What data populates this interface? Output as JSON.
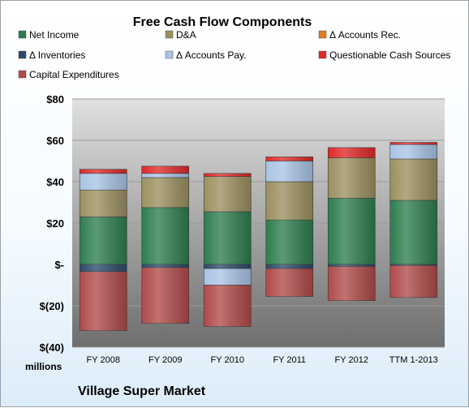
{
  "chart_data": {
    "type": "bar",
    "stacked": true,
    "title": "Free Cash Flow Components",
    "unit_label": "millions",
    "caption": "Village Super Market",
    "categories": [
      "FY 2008",
      "FY 2009",
      "FY 2010",
      "FY 2011",
      "FY 2012",
      "TTM 1-2013"
    ],
    "y_ticks": [
      "$80",
      "$60",
      "$40",
      "$20",
      "$-",
      "$(20)",
      "$(40)"
    ],
    "ylim": [
      -40,
      80
    ],
    "grid": true,
    "legend_position": "top",
    "series": [
      {
        "name": "Net Income",
        "color": "#2e7d4f",
        "values": [
          23,
          27.5,
          25.5,
          21.5,
          32,
          31
        ]
      },
      {
        "name": "D&A",
        "color": "#9b9060",
        "values": [
          13,
          14.5,
          17,
          18.5,
          19.5,
          20
        ]
      },
      {
        "name": "Δ Accounts Rec.",
        "color": "#e07b20",
        "values": [
          0,
          0,
          0,
          0,
          0,
          0
        ]
      },
      {
        "name": "Δ Inventories",
        "color": "#2b4a6b",
        "values": [
          -3.5,
          -1.5,
          -2,
          -2,
          -1,
          -0.5
        ]
      },
      {
        "name": "Δ Accounts Pay.",
        "color": "#a9c4e4",
        "values": [
          8,
          2,
          -8,
          10,
          0,
          7
        ]
      },
      {
        "name": "Questionable Cash Sources",
        "color": "#e02828",
        "values": [
          2,
          3.5,
          1.5,
          2,
          5,
          1
        ]
      },
      {
        "name": "Capital Expenditures",
        "color": "#b04a4a",
        "values": [
          -28.5,
          -27,
          -20,
          -13.5,
          -16.5,
          -15.5
        ]
      }
    ]
  }
}
